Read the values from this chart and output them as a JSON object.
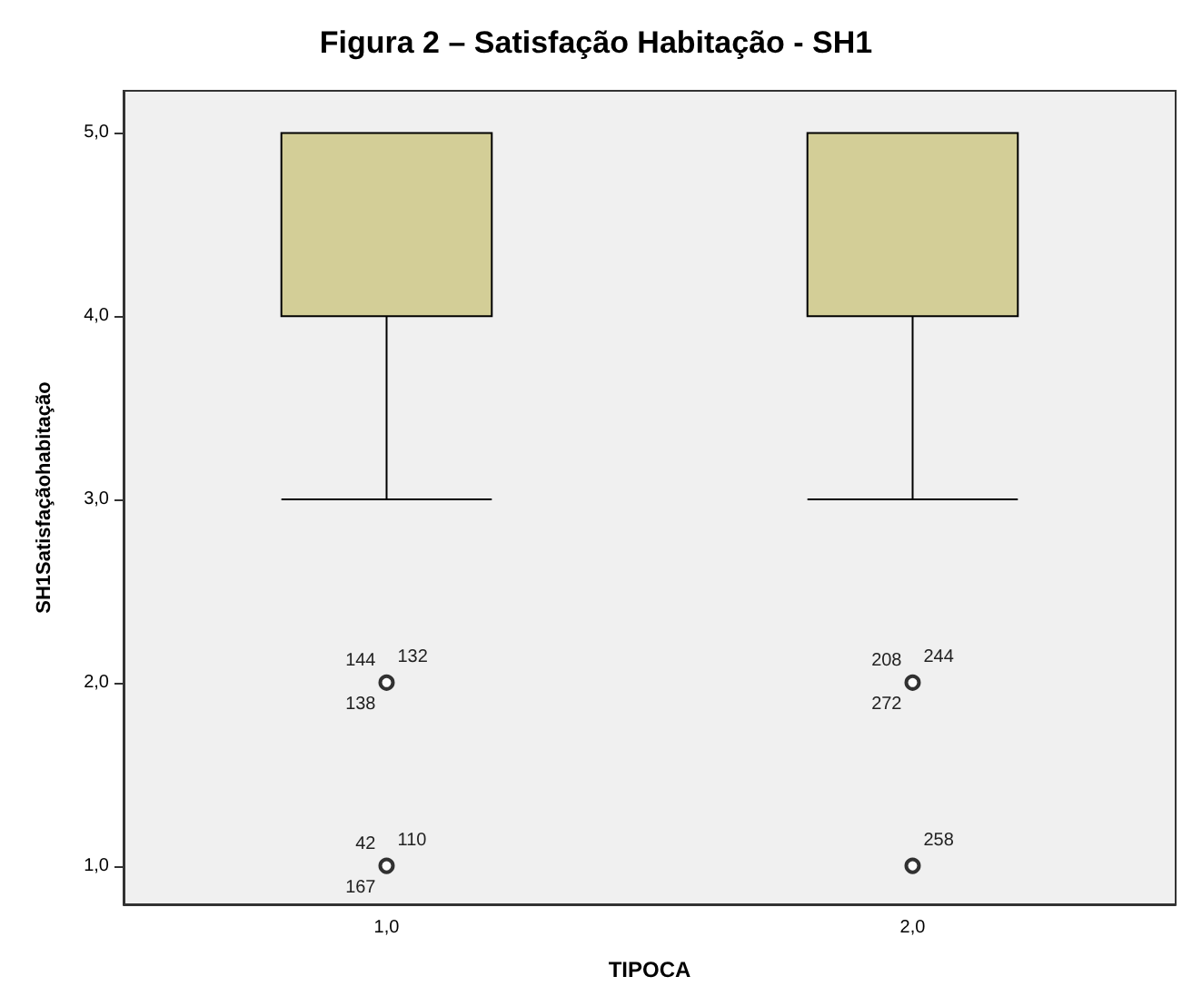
{
  "chart_data": {
    "type": "box",
    "title": "Figura 2 – Satisfação Habitação - SH1",
    "xlabel": "TIPOCA",
    "ylabel": "SH1Satisfaçãohabitação",
    "categories": [
      "1,0",
      "2,0"
    ],
    "color": "#d3ce97",
    "boxes": [
      {
        "low": 3,
        "q1": 4,
        "median": 4,
        "q3": 5,
        "high": 5
      },
      {
        "low": 3,
        "q1": 4,
        "median": 4,
        "q3": 5,
        "high": 5
      }
    ],
    "series": [
      {
        "type": "scatter",
        "x": [
          "1,0",
          "1,0",
          "2,0",
          "2,0"
        ],
        "values": [
          2,
          1,
          2,
          1
        ],
        "color": "#000000",
        "marker": "circle"
      }
    ],
    "ylim": [
      0.79,
      5.23
    ],
    "yticks": [
      {
        "value": 1,
        "label": "1,0"
      },
      {
        "value": 2,
        "label": "2,0"
      },
      {
        "value": 3,
        "label": "3,0"
      },
      {
        "value": 4,
        "label": "4,0"
      },
      {
        "value": 5,
        "label": "5,0"
      }
    ],
    "grid": false,
    "annotations": [
      {
        "text": "132",
        "x": "1,0",
        "y": 2
      },
      {
        "text": "138",
        "x": "1,0",
        "y": 2
      },
      {
        "text": "144",
        "x": "1,0",
        "y": 2
      },
      {
        "text": "110",
        "x": "1,0",
        "y": 1
      },
      {
        "text": "167",
        "x": "1,0",
        "y": 1
      },
      {
        "text": "42",
        "x": "1,0",
        "y": 1
      },
      {
        "text": "244",
        "x": "2,0",
        "y": 2
      },
      {
        "text": "272",
        "x": "2,0",
        "y": 2
      },
      {
        "text": "208",
        "x": "2,0",
        "y": 2
      },
      {
        "text": "258",
        "x": "2,0",
        "y": 1
      }
    ]
  }
}
